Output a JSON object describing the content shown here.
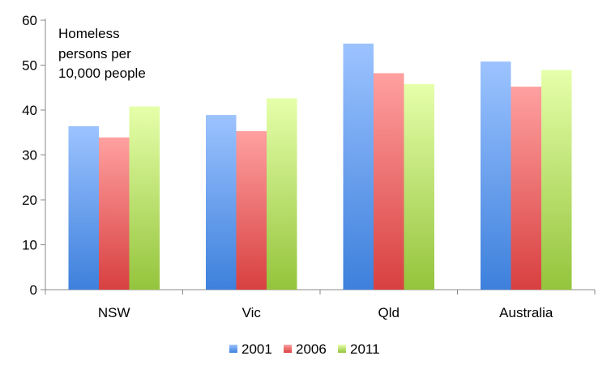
{
  "chart_data": {
    "type": "bar",
    "categories": [
      "NSW",
      "Vic",
      "Qld",
      "Australia"
    ],
    "series": [
      {
        "name": "2001",
        "values": [
          36.4,
          38.9,
          54.8,
          50.8
        ],
        "color_top": "#9cc3ff",
        "color_bottom": "#3d80dc"
      },
      {
        "name": "2006",
        "values": [
          33.9,
          35.3,
          48.2,
          45.2
        ],
        "color_top": "#ffa0a0",
        "color_bottom": "#d84040"
      },
      {
        "name": "2011",
        "values": [
          40.8,
          42.6,
          45.8,
          48.9
        ],
        "color_top": "#e6ffaa",
        "color_bottom": "#94c43c"
      }
    ],
    "annotation": [
      "Homeless",
      "persons per",
      "10,000 people"
    ],
    "ylim": [
      0,
      60
    ],
    "yticks": [
      0,
      10,
      20,
      30,
      40,
      50,
      60
    ],
    "grid": false,
    "legend_position": "bottom"
  }
}
